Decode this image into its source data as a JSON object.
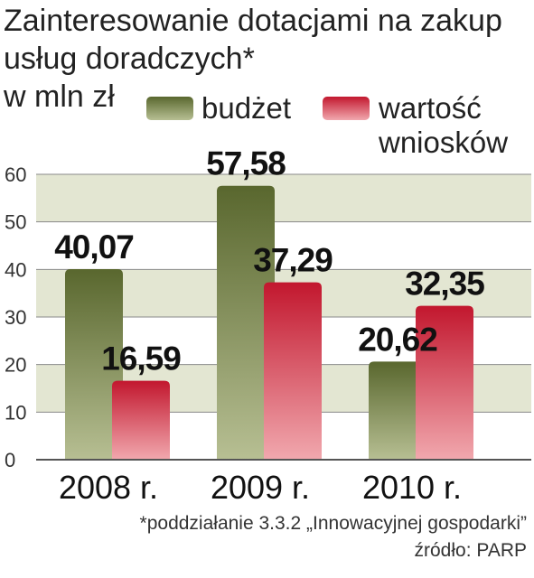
{
  "title_lines": [
    "Zainteresowanie dotacjami na zakup",
    "usług doradczych*",
    "w mln zł"
  ],
  "footnote": "*poddziałanie 3.3.2 „Innowacyjnej gospodarki”",
  "source": "źródło: PARP",
  "colors": {
    "budzet_top": "#59672e",
    "budzet_bottom": "#b7bf93",
    "wartosc_top": "#c2172e",
    "wartosc_bottom": "#f1a8ae",
    "band": "#e3e6d2"
  },
  "chart_data": {
    "type": "bar",
    "categories": [
      "2008 r.",
      "2009 r.",
      "2010 r."
    ],
    "series": [
      {
        "name": "budżet",
        "values": [
          40.07,
          57.58,
          20.62
        ],
        "labels": [
          "40,07",
          "57,58",
          "20,62"
        ]
      },
      {
        "name": "wartość wniosków",
        "values": [
          16.59,
          37.29,
          32.35
        ],
        "labels": [
          "16,59",
          "37,29",
          "32,35"
        ]
      }
    ],
    "legend_lines": [
      [
        "budżet"
      ],
      [
        "wartość",
        "wniosków"
      ]
    ],
    "ylim": [
      0,
      60
    ],
    "yticks": [
      "0",
      "10",
      "20",
      "30",
      "40",
      "50",
      "60"
    ],
    "legend_position": "top",
    "grid": true
  }
}
